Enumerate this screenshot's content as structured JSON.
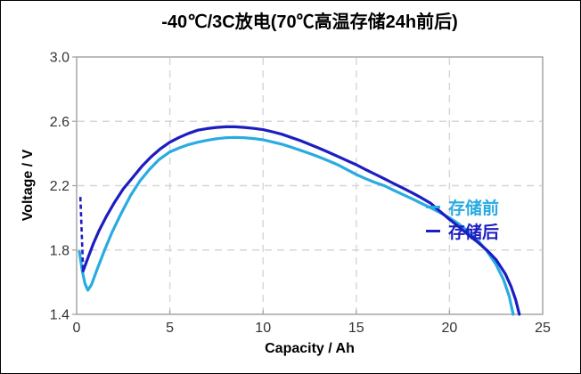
{
  "frame": {
    "background": "#FFFFFF",
    "border_color": "#000000"
  },
  "chart_data": {
    "type": "line",
    "title": "-40℃/3C放电(70℃高温存储24h前后)",
    "xlabel": "Capacity / Ah",
    "ylabel": "Voltage / V",
    "xlim": [
      0,
      25
    ],
    "ylim": [
      1.4,
      3.0
    ],
    "x_ticks": [
      {
        "v": 0,
        "label": "0"
      },
      {
        "v": 5,
        "label": "5"
      },
      {
        "v": 10,
        "label": "10"
      },
      {
        "v": 15,
        "label": "15"
      },
      {
        "v": 20,
        "label": "20"
      },
      {
        "v": 25,
        "label": "25"
      }
    ],
    "y_ticks": [
      {
        "v": 3.0,
        "label": "3.0"
      },
      {
        "v": 2.6,
        "label": "2.6"
      },
      {
        "v": 2.2,
        "label": "2.2"
      },
      {
        "v": 1.8,
        "label": "1.8"
      },
      {
        "v": 1.4,
        "label": "1.4"
      }
    ],
    "grid": true,
    "grid_color": "#D6D6D6",
    "axis_color": "#A6A6A6",
    "tick_label_color": "#333333",
    "legend_position": "inside-right-middle",
    "series": [
      {
        "key": "before-storage",
        "name": "存储前",
        "color": "#29ABE2",
        "points": [
          [
            0.15,
            1.79
          ],
          [
            0.3,
            1.67
          ],
          [
            0.45,
            1.59
          ],
          [
            0.6,
            1.55
          ],
          [
            0.8,
            1.585
          ],
          [
            1.1,
            1.68
          ],
          [
            1.5,
            1.8
          ],
          [
            1.9,
            1.91
          ],
          [
            2.4,
            2.03
          ],
          [
            2.9,
            2.14
          ],
          [
            3.4,
            2.23
          ],
          [
            3.9,
            2.3
          ],
          [
            4.4,
            2.36
          ],
          [
            5,
            2.41
          ],
          [
            5.5,
            2.435
          ],
          [
            6,
            2.455
          ],
          [
            6.5,
            2.47
          ],
          [
            7,
            2.482
          ],
          [
            7.5,
            2.492
          ],
          [
            8,
            2.498
          ],
          [
            8.5,
            2.5
          ],
          [
            9,
            2.498
          ],
          [
            9.5,
            2.493
          ],
          [
            10,
            2.485
          ],
          [
            10.5,
            2.472
          ],
          [
            11,
            2.458
          ],
          [
            11.5,
            2.44
          ],
          [
            12,
            2.42
          ],
          [
            12.5,
            2.4
          ],
          [
            13,
            2.378
          ],
          [
            13.5,
            2.355
          ],
          [
            14,
            2.33
          ],
          [
            14.5,
            2.3
          ],
          [
            15,
            2.27
          ],
          [
            15.5,
            2.243
          ],
          [
            16,
            2.22
          ],
          [
            16.5,
            2.2
          ],
          [
            17,
            2.172
          ],
          [
            17.5,
            2.145
          ],
          [
            18,
            2.118
          ],
          [
            18.5,
            2.09
          ],
          [
            19,
            2.062
          ],
          [
            19.5,
            2.032
          ],
          [
            20,
            2.0
          ],
          [
            20.5,
            1.962
          ],
          [
            21,
            1.915
          ],
          [
            21.5,
            1.862
          ],
          [
            22,
            1.795
          ],
          [
            22.5,
            1.71
          ],
          [
            22.9,
            1.615
          ],
          [
            23.2,
            1.515
          ],
          [
            23.42,
            1.4
          ]
        ]
      },
      {
        "key": "after-storage",
        "name": "存储后",
        "color": "#1D1DC0",
        "dashed_start_drop": [
          [
            0.2,
            2.13
          ],
          [
            0.35,
            1.67
          ]
        ],
        "points": [
          [
            0.35,
            1.67
          ],
          [
            0.6,
            1.75
          ],
          [
            0.9,
            1.84
          ],
          [
            1.2,
            1.92
          ],
          [
            1.6,
            2.01
          ],
          [
            2,
            2.09
          ],
          [
            2.5,
            2.18
          ],
          [
            3,
            2.25
          ],
          [
            3.5,
            2.32
          ],
          [
            4,
            2.38
          ],
          [
            4.5,
            2.43
          ],
          [
            5,
            2.47
          ],
          [
            5.5,
            2.5
          ],
          [
            6,
            2.525
          ],
          [
            6.5,
            2.545
          ],
          [
            7,
            2.555
          ],
          [
            7.5,
            2.562
          ],
          [
            8,
            2.566
          ],
          [
            8.5,
            2.566
          ],
          [
            9,
            2.562
          ],
          [
            9.5,
            2.556
          ],
          [
            10,
            2.548
          ],
          [
            10.5,
            2.535
          ],
          [
            11,
            2.52
          ],
          [
            11.5,
            2.5
          ],
          [
            12,
            2.48
          ],
          [
            12.5,
            2.457
          ],
          [
            13,
            2.433
          ],
          [
            13.5,
            2.408
          ],
          [
            14,
            2.382
          ],
          [
            14.5,
            2.356
          ],
          [
            15,
            2.33
          ],
          [
            15.5,
            2.3
          ],
          [
            16,
            2.272
          ],
          [
            16.5,
            2.243
          ],
          [
            17,
            2.214
          ],
          [
            17.5,
            2.185
          ],
          [
            18,
            2.155
          ],
          [
            18.5,
            2.124
          ],
          [
            19,
            2.09
          ],
          [
            19.5,
            2.04
          ],
          [
            20,
            1.99
          ],
          [
            20.5,
            1.945
          ],
          [
            21,
            1.895
          ],
          [
            21.5,
            1.85
          ],
          [
            22,
            1.8
          ],
          [
            22.5,
            1.74
          ],
          [
            23,
            1.65
          ],
          [
            23.3,
            1.575
          ],
          [
            23.55,
            1.49
          ],
          [
            23.75,
            1.4
          ]
        ]
      }
    ]
  }
}
